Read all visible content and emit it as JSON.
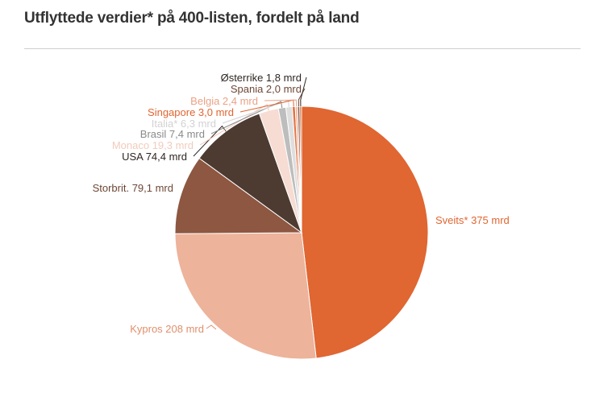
{
  "title": "Utflyttede verdier* på 400-listen, fordelt på land",
  "chart_data": {
    "type": "pie",
    "unit": "mrd",
    "slices": [
      {
        "label": "Sveits*",
        "value": 375,
        "display": "375 mrd",
        "color": "#e06632",
        "label_color": "#e06632"
      },
      {
        "label": "Kypros",
        "value": 208,
        "display": "208 mrd",
        "color": "#edb39b",
        "label_color": "#e08f6c"
      },
      {
        "label": "Storbrit.",
        "value": 79.1,
        "display": "79,1 mrd",
        "color": "#8d5741",
        "label_color": "#6e4636"
      },
      {
        "label": "USA",
        "value": 74.4,
        "display": "74,4 mrd",
        "color": "#4d3a31",
        "label_color": "#2e2622"
      },
      {
        "label": "Monaco",
        "value": 19.3,
        "display": "19,3 mrd",
        "color": "#f6dcd2",
        "label_color": "#f2cbbb"
      },
      {
        "label": "Brasil",
        "value": 7.4,
        "display": "7,4 mrd",
        "color": "#bdbdbd",
        "label_color": "#8a8a8a"
      },
      {
        "label": "Italia*",
        "value": 6.3,
        "display": "6,3 mrd",
        "color": "#dedede",
        "label_color": "#d2d2d2"
      },
      {
        "label": "Singapore",
        "value": 3.0,
        "display": "3,0 mrd",
        "color": "#e37444",
        "label_color": "#e06632"
      },
      {
        "label": "Belgia",
        "value": 2.4,
        "display": "2,4 mrd",
        "color": "#f0b79f",
        "label_color": "#eaa286"
      },
      {
        "label": "Spania",
        "value": 2.0,
        "display": "2,0 mrd",
        "color": "#7d4f3d",
        "label_color": "#6e4636"
      },
      {
        "label": "Østerrike",
        "value": 1.8,
        "display": "1,8 mrd",
        "color": "#d2692f",
        "label_color": "#2e2622"
      }
    ]
  }
}
